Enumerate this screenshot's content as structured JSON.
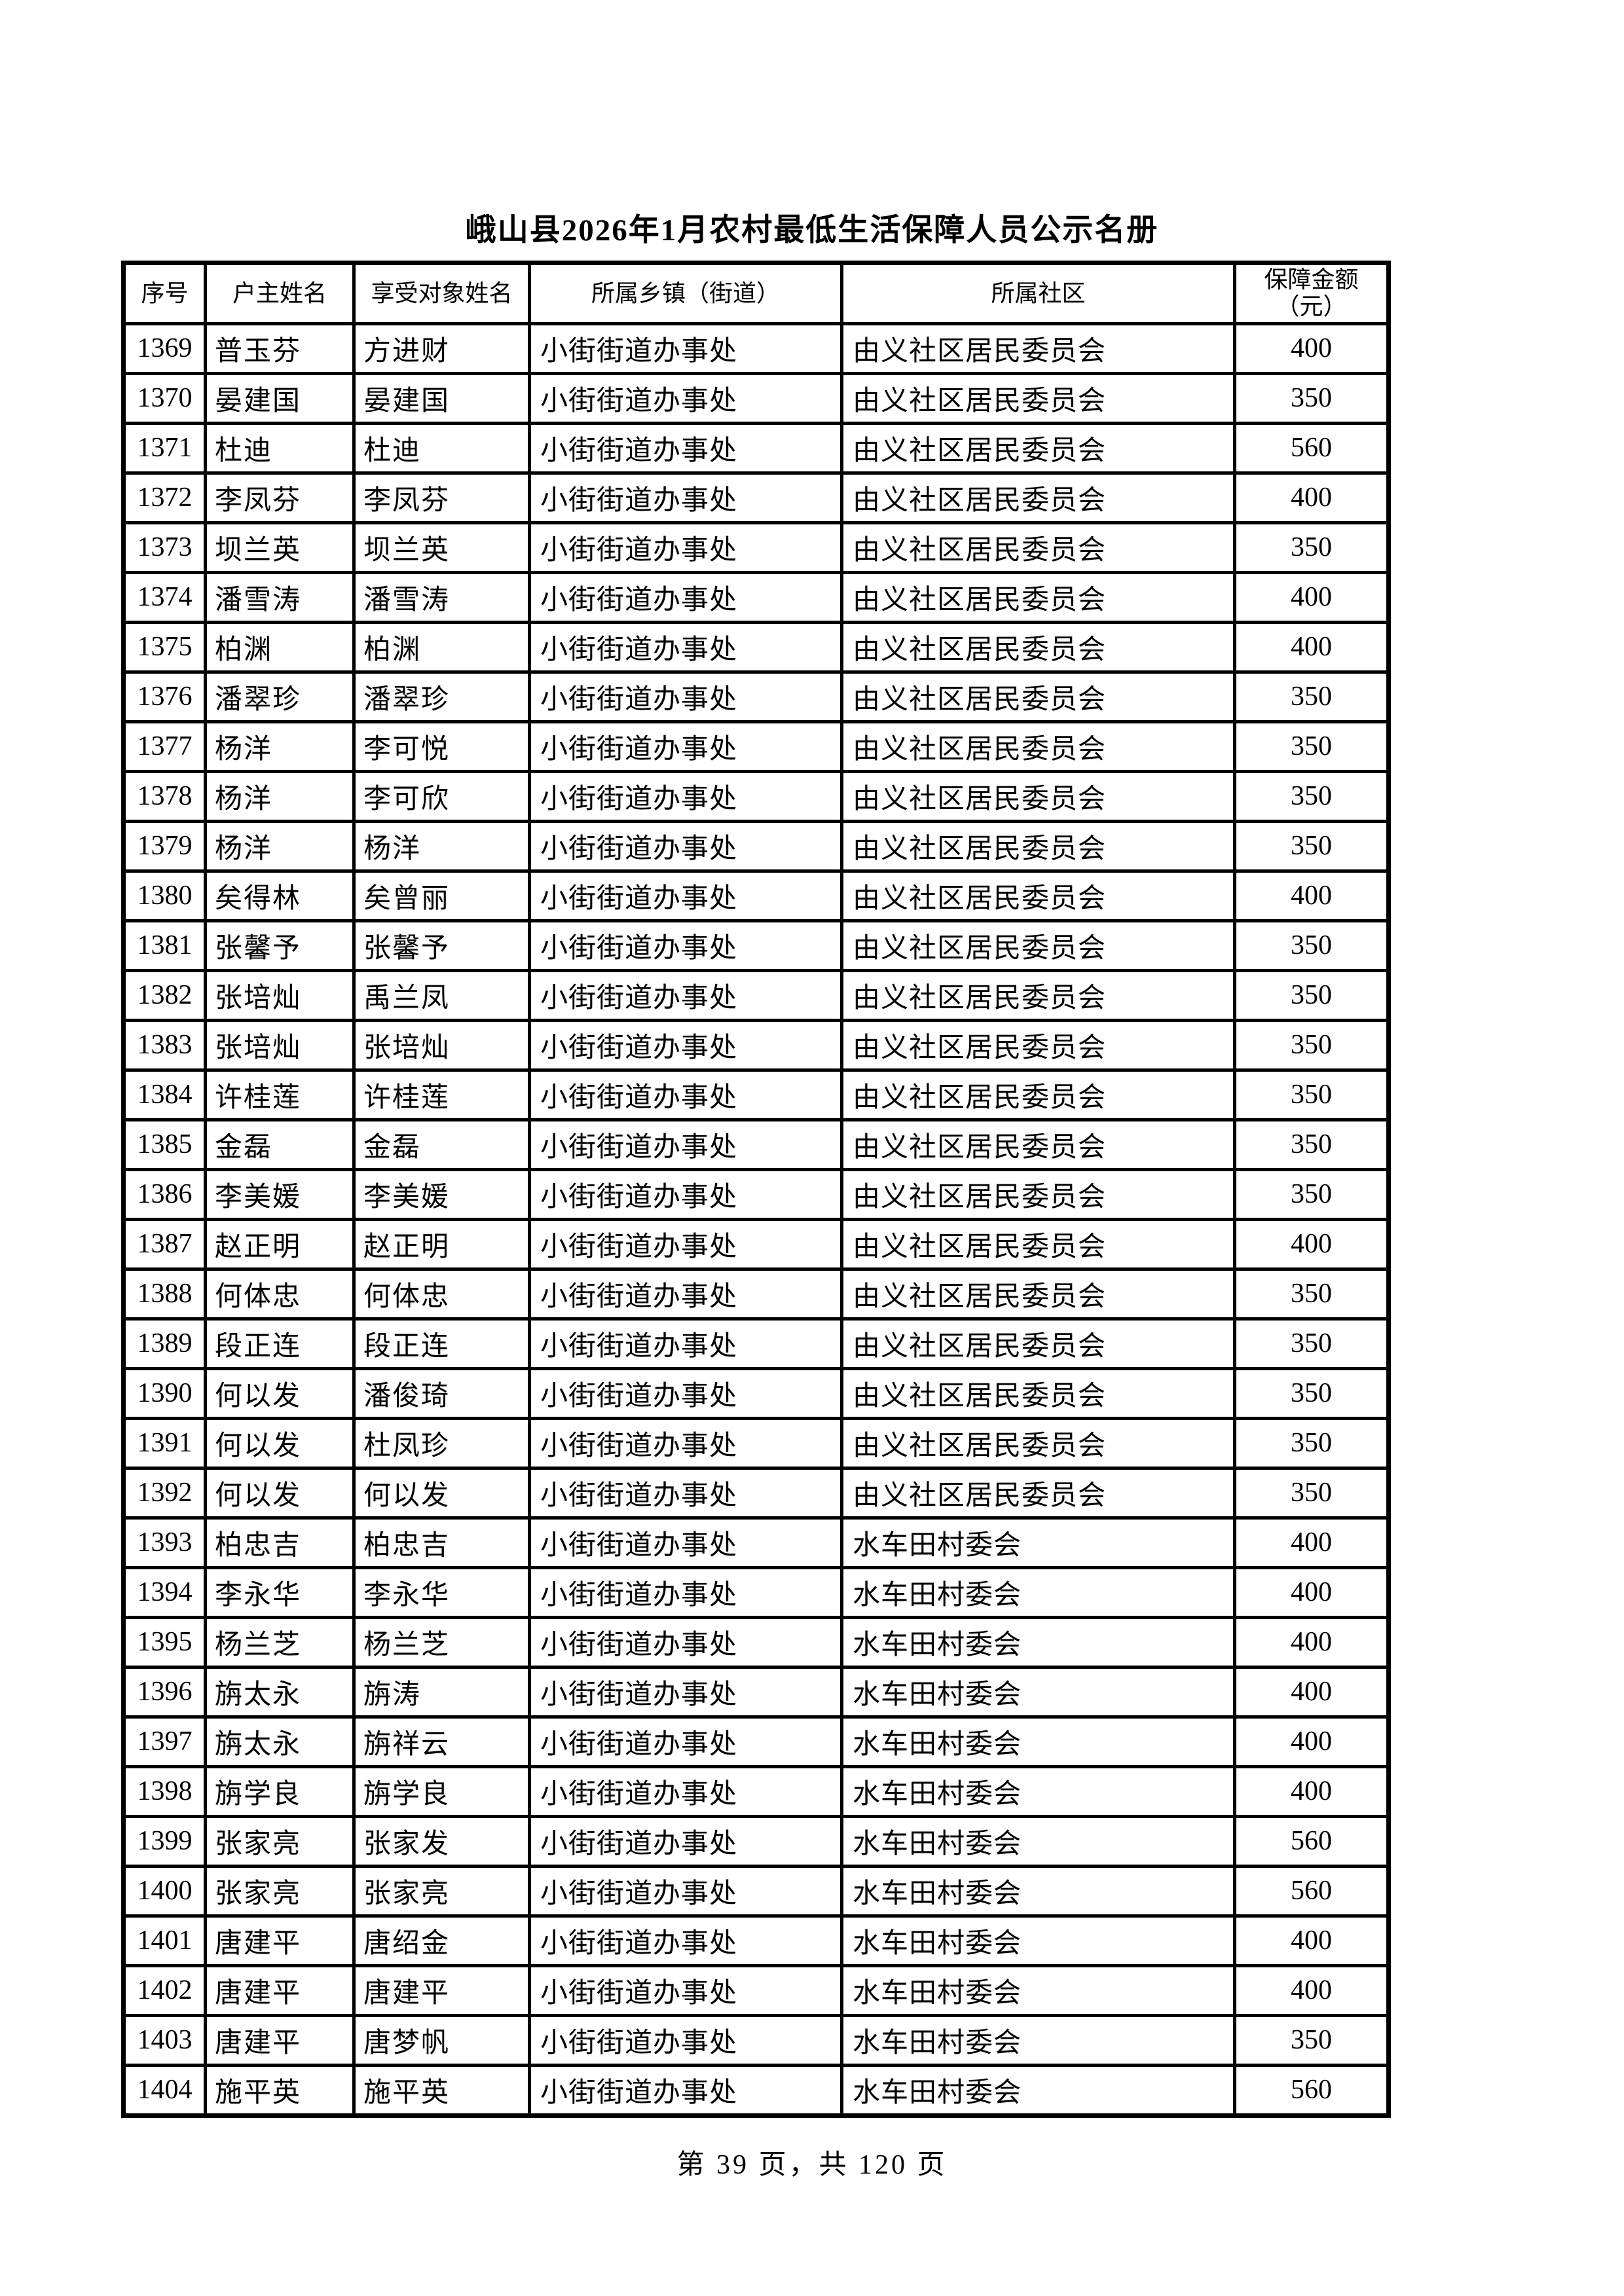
{
  "page": {
    "title": "峨山县2026年1月农村最低生活保障人员公示名册",
    "footer": "第 39 页，共 120 页"
  },
  "table": {
    "headers": [
      "序号",
      "户主姓名",
      "享受对象姓名",
      "所属乡镇（街道）",
      "所属社区",
      "保障金额\n（元）"
    ],
    "rows": [
      [
        1369,
        "普玉芬",
        "方进财",
        "小街街道办事处",
        "由义社区居民委员会",
        400
      ],
      [
        1370,
        "晏建国",
        "晏建国",
        "小街街道办事处",
        "由义社区居民委员会",
        350
      ],
      [
        1371,
        "杜迪",
        "杜迪",
        "小街街道办事处",
        "由义社区居民委员会",
        560
      ],
      [
        1372,
        "李凤芬",
        "李凤芬",
        "小街街道办事处",
        "由义社区居民委员会",
        400
      ],
      [
        1373,
        "坝兰英",
        "坝兰英",
        "小街街道办事处",
        "由义社区居民委员会",
        350
      ],
      [
        1374,
        "潘雪涛",
        "潘雪涛",
        "小街街道办事处",
        "由义社区居民委员会",
        400
      ],
      [
        1375,
        "柏渊",
        "柏渊",
        "小街街道办事处",
        "由义社区居民委员会",
        400
      ],
      [
        1376,
        "潘翠珍",
        "潘翠珍",
        "小街街道办事处",
        "由义社区居民委员会",
        350
      ],
      [
        1377,
        "杨洋",
        "李可悦",
        "小街街道办事处",
        "由义社区居民委员会",
        350
      ],
      [
        1378,
        "杨洋",
        "李可欣",
        "小街街道办事处",
        "由义社区居民委员会",
        350
      ],
      [
        1379,
        "杨洋",
        "杨洋",
        "小街街道办事处",
        "由义社区居民委员会",
        350
      ],
      [
        1380,
        "矣得林",
        "矣曾丽",
        "小街街道办事处",
        "由义社区居民委员会",
        400
      ],
      [
        1381,
        "张馨予",
        "张馨予",
        "小街街道办事处",
        "由义社区居民委员会",
        350
      ],
      [
        1382,
        "张培灿",
        "禹兰凤",
        "小街街道办事处",
        "由义社区居民委员会",
        350
      ],
      [
        1383,
        "张培灿",
        "张培灿",
        "小街街道办事处",
        "由义社区居民委员会",
        350
      ],
      [
        1384,
        "许桂莲",
        "许桂莲",
        "小街街道办事处",
        "由义社区居民委员会",
        350
      ],
      [
        1385,
        "金磊",
        "金磊",
        "小街街道办事处",
        "由义社区居民委员会",
        350
      ],
      [
        1386,
        "李美媛",
        "李美媛",
        "小街街道办事处",
        "由义社区居民委员会",
        350
      ],
      [
        1387,
        "赵正明",
        "赵正明",
        "小街街道办事处",
        "由义社区居民委员会",
        400
      ],
      [
        1388,
        "何体忠",
        "何体忠",
        "小街街道办事处",
        "由义社区居民委员会",
        350
      ],
      [
        1389,
        "段正连",
        "段正连",
        "小街街道办事处",
        "由义社区居民委员会",
        350
      ],
      [
        1390,
        "何以发",
        "潘俊琦",
        "小街街道办事处",
        "由义社区居民委员会",
        350
      ],
      [
        1391,
        "何以发",
        "杜凤珍",
        "小街街道办事处",
        "由义社区居民委员会",
        350
      ],
      [
        1392,
        "何以发",
        "何以发",
        "小街街道办事处",
        "由义社区居民委员会",
        350
      ],
      [
        1393,
        "柏忠吉",
        "柏忠吉",
        "小街街道办事处",
        "水车田村委会",
        400
      ],
      [
        1394,
        "李永华",
        "李永华",
        "小街街道办事处",
        "水车田村委会",
        400
      ],
      [
        1395,
        "杨兰芝",
        "杨兰芝",
        "小街街道办事处",
        "水车田村委会",
        400
      ],
      [
        1396,
        "旃太永",
        "旃涛",
        "小街街道办事处",
        "水车田村委会",
        400
      ],
      [
        1397,
        "旃太永",
        "旃祥云",
        "小街街道办事处",
        "水车田村委会",
        400
      ],
      [
        1398,
        "旃学良",
        "旃学良",
        "小街街道办事处",
        "水车田村委会",
        400
      ],
      [
        1399,
        "张家亮",
        "张家发",
        "小街街道办事处",
        "水车田村委会",
        560
      ],
      [
        1400,
        "张家亮",
        "张家亮",
        "小街街道办事处",
        "水车田村委会",
        560
      ],
      [
        1401,
        "唐建平",
        "唐绍金",
        "小街街道办事处",
        "水车田村委会",
        400
      ],
      [
        1402,
        "唐建平",
        "唐建平",
        "小街街道办事处",
        "水车田村委会",
        400
      ],
      [
        1403,
        "唐建平",
        "唐梦帆",
        "小街街道办事处",
        "水车田村委会",
        350
      ],
      [
        1404,
        "施平英",
        "施平英",
        "小街街道办事处",
        "水车田村委会",
        560
      ]
    ]
  }
}
